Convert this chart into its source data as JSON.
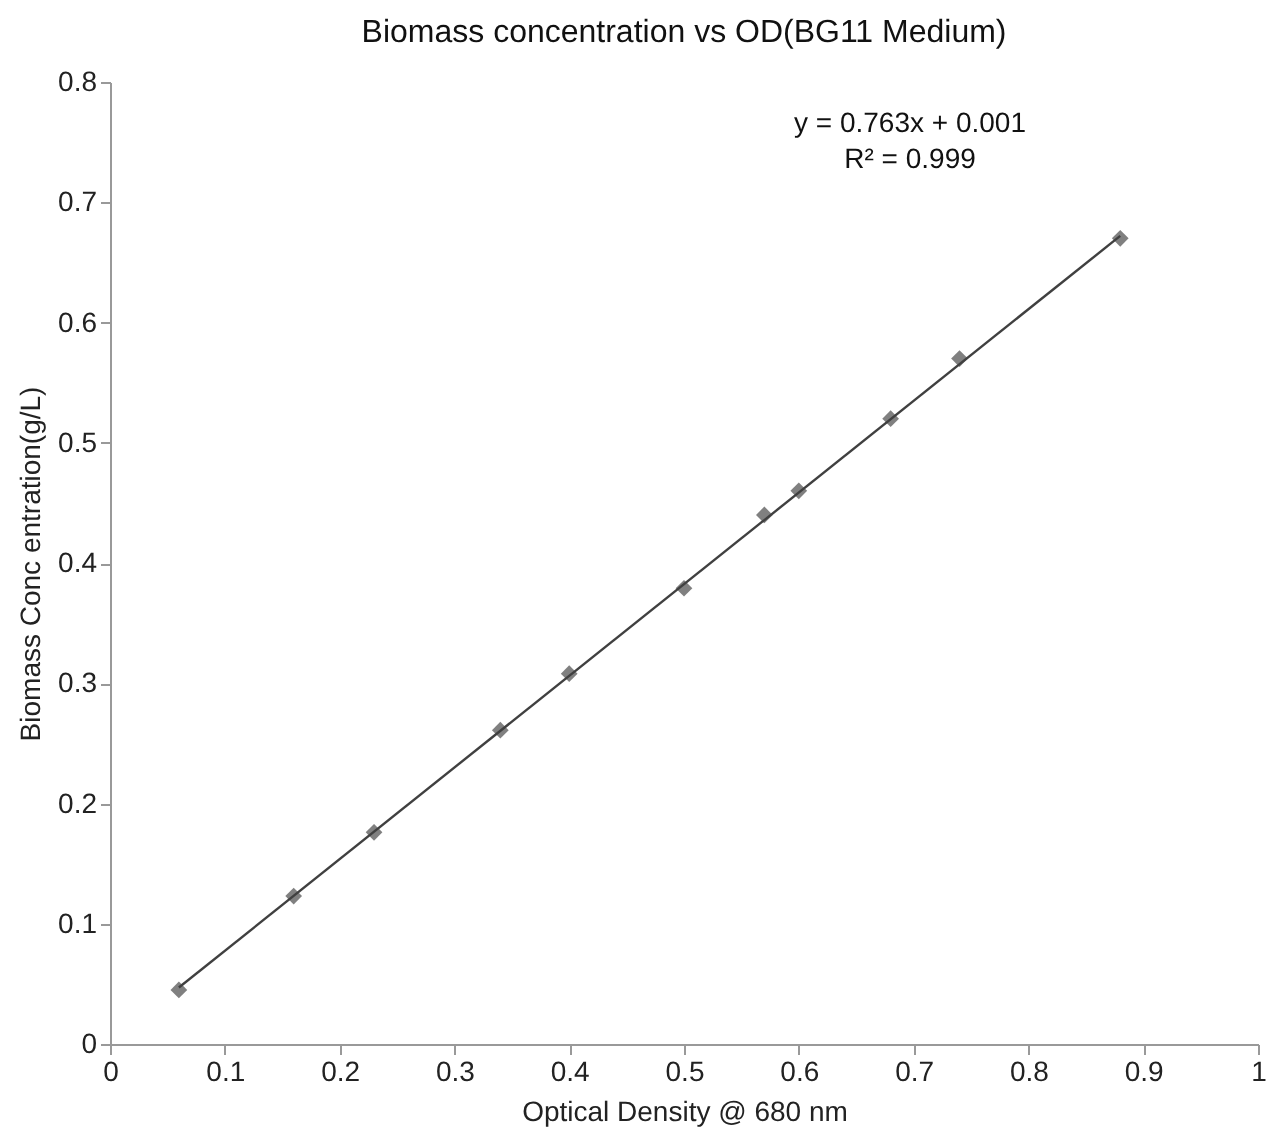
{
  "chart_data": {
    "type": "scatter",
    "title": "Biomass concentration vs OD(BG11 Medium)",
    "xlabel": "Optical Density @ 680 nm",
    "ylabel": "Biomass Conc entration(g/L)",
    "xlim": [
      0,
      1
    ],
    "xticks": [
      0,
      0.1,
      0.2,
      0.3,
      0.4,
      0.5,
      0.6,
      0.7,
      0.8,
      0.9,
      1
    ],
    "ylim": [
      0,
      0.8
    ],
    "yticks": [
      0,
      0.1,
      0.2,
      0.3,
      0.4,
      0.5,
      0.6,
      0.7,
      0.8
    ],
    "grid": false,
    "series": [
      {
        "color": "#808080",
        "marker": "diamond",
        "x": [
          0.06,
          0.16,
          0.23,
          0.34,
          0.4,
          0.5,
          0.57,
          0.6,
          0.68,
          0.74,
          0.88
        ],
        "values": [
          0.045,
          0.123,
          0.176,
          0.261,
          0.308,
          0.379,
          0.44,
          0.46,
          0.52,
          0.57,
          0.67
        ]
      },
      {
        "type": "line",
        "color": "#404040",
        "line_style": "solid",
        "x": [
          0.06,
          0.88
        ],
        "values": [
          0.047,
          0.672
        ]
      }
    ],
    "annotations": [
      "y = 0.763x + 0.001",
      "R² = 0.999"
    ]
  }
}
